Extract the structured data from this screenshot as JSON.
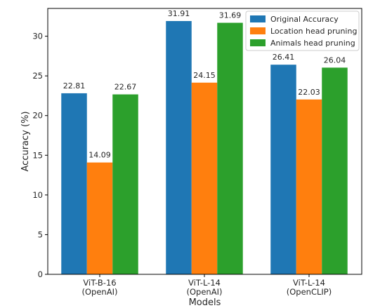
{
  "chart_data": {
    "type": "bar",
    "title": "",
    "xlabel": "Models",
    "ylabel": "Accuracy (%)",
    "ylim": [
      0,
      33.5
    ],
    "yticks": [
      0,
      5,
      10,
      15,
      20,
      25,
      30
    ],
    "grid": false,
    "legend_position": "top-right",
    "categories": [
      [
        "ViT-B-16",
        "(OpenAI)"
      ],
      [
        "ViT-L-14",
        "(OpenAI)"
      ],
      [
        "ViT-L-14",
        "(OpenCLIP)"
      ]
    ],
    "series": [
      {
        "name": "Original Accuracy",
        "color": "#1f77b4",
        "values": [
          22.81,
          31.91,
          26.41
        ]
      },
      {
        "name": "Location head pruning",
        "color": "#ff7f0e",
        "values": [
          14.09,
          24.15,
          22.03
        ]
      },
      {
        "name": "Animals head pruning",
        "color": "#2ca02c",
        "values": [
          22.67,
          31.69,
          26.04
        ]
      }
    ]
  }
}
